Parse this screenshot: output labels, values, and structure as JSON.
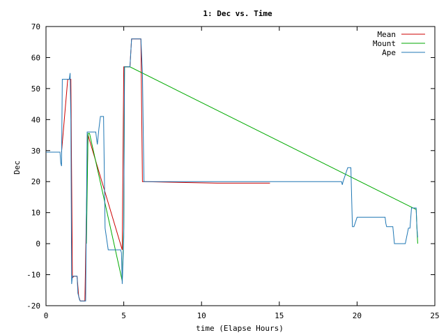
{
  "chart_data": {
    "type": "line",
    "title": "1: Dec vs. Time",
    "xlabel": "time (Elapse Hours)",
    "ylabel": "Dec",
    "xlim": [
      0,
      25
    ],
    "ylim": [
      -20,
      70
    ],
    "x_ticks": [
      0,
      5,
      10,
      15,
      20,
      25
    ],
    "y_ticks": [
      -20,
      -10,
      0,
      10,
      20,
      30,
      40,
      50,
      60,
      70
    ],
    "x_tick_labels": [
      "0",
      "5",
      "10",
      "15",
      "20",
      "25"
    ],
    "y_tick_labels": [
      "-20",
      "-10",
      "0",
      "10",
      "20",
      "30",
      "40",
      "50",
      "60",
      "70"
    ],
    "grid": false,
    "legend_position": "top-right",
    "series": [
      {
        "name": "Mean",
        "color": "#cc0000",
        "x": [
          1.0,
          1.4,
          1.6,
          1.7,
          1.8,
          2.0,
          2.1,
          2.2,
          2.3,
          2.5,
          2.6,
          2.7,
          4.9,
          5.0,
          5.1,
          5.4,
          5.5,
          5.6,
          6.1,
          6.2,
          6.3,
          11.0,
          14.4
        ],
        "y": [
          29.5,
          53,
          53,
          -11,
          -10.5,
          -10.5,
          -17,
          -18.5,
          -18.5,
          -18.5,
          10,
          35,
          -2,
          57,
          57,
          57,
          66,
          66,
          66,
          20,
          20,
          19.5,
          19.5
        ]
      },
      {
        "name": "Mount",
        "color": "#00aa00",
        "x": [
          2.6,
          2.7,
          2.8,
          4.9,
          5.0,
          5.05,
          5.1,
          5.4,
          23.8,
          23.85,
          23.9
        ],
        "y": [
          0,
          35.5,
          35.5,
          -12,
          5,
          57,
          57,
          57,
          11,
          5,
          0
        ]
      },
      {
        "name": "Ape",
        "color": "#1f77b4",
        "x": [
          0,
          0.9,
          0.95,
          1.0,
          1.05,
          1.1,
          1.5,
          1.55,
          1.6,
          1.65,
          1.7,
          1.8,
          1.85,
          2.0,
          2.05,
          2.15,
          2.2,
          2.5,
          2.55,
          2.6,
          2.65,
          2.7,
          2.9,
          3.2,
          3.25,
          3.3,
          3.4,
          3.5,
          3.7,
          3.8,
          4.0,
          4.8,
          4.85,
          4.9,
          5.0,
          5.05,
          5.1,
          5.4,
          5.5,
          5.6,
          6.0,
          6.1,
          6.2,
          6.3,
          18.8,
          18.9,
          19.0,
          19.05,
          19.1,
          19.4,
          19.5,
          19.6,
          19.7,
          19.8,
          20.0,
          21.7,
          21.8,
          21.85,
          21.9,
          22.2,
          22.3,
          22.4,
          23.0,
          23.1,
          23.3,
          23.4,
          23.5,
          23.7,
          23.8,
          23.85,
          23.9
        ],
        "y": [
          29.5,
          29.5,
          26,
          25,
          53,
          53,
          53,
          55,
          40,
          -13,
          -10.5,
          -10.5,
          -10.5,
          -10.5,
          -16,
          -18,
          -18.5,
          -18.5,
          -18.5,
          10,
          36,
          36,
          36,
          36,
          34,
          32,
          37,
          41,
          41,
          5,
          -2,
          -2,
          -3,
          -13,
          2,
          57,
          57,
          57,
          66,
          66,
          66,
          66,
          55,
          20,
          20,
          20,
          20,
          19,
          20,
          24.5,
          24.5,
          24.5,
          5.5,
          5.5,
          8.5,
          8.5,
          8.5,
          6.5,
          5.5,
          5.5,
          5.5,
          0,
          0,
          0,
          5,
          5,
          11.5,
          11.5,
          11.5,
          5,
          2
        ]
      }
    ]
  }
}
